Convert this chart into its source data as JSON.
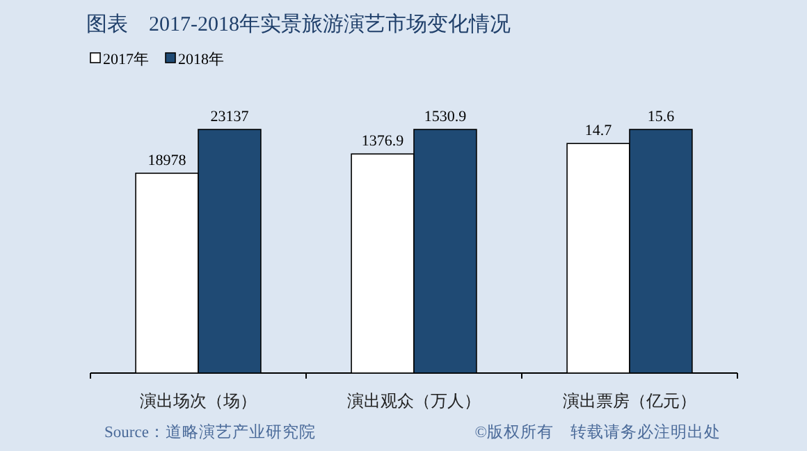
{
  "chart_data": [
    {
      "type": "bar",
      "title": "图表　2017-2018年实景旅游演艺市场变化情况",
      "categories": [
        "演出场次（场）"
      ],
      "legend": "top left",
      "data_labels": true,
      "annotations": [
        "Source：道略演艺产业研究院",
        "©版权所有　转载请务必注明出处"
      ],
      "series": [
        {
          "name": "2017年",
          "color": "#ffffff",
          "values": [
            18978
          ]
        },
        {
          "name": "2018年",
          "color": "#1f4a74",
          "values": [
            23137
          ]
        }
      ]
    },
    {
      "type": "bar",
      "categories": [
        "演出观众（万人）"
      ],
      "data_labels": true,
      "series": [
        {
          "color": "#ffffff",
          "values": [
            1376.9
          ]
        },
        {
          "color": "#1f4a74",
          "values": [
            1530.9
          ]
        }
      ]
    },
    {
      "type": "bar",
      "categories": [
        "演出票房（亿元）"
      ],
      "data_labels": true,
      "series": [
        {
          "color": "#ffffff",
          "values": [
            14.7
          ]
        },
        {
          "color": "#1f4a74",
          "values": [
            15.6
          ]
        }
      ]
    }
  ]
}
